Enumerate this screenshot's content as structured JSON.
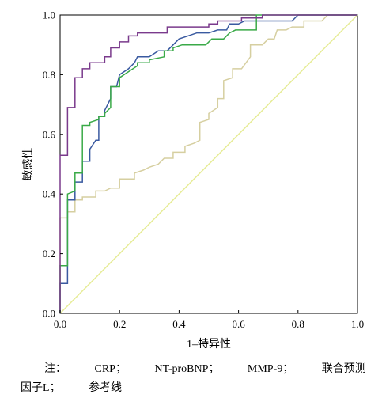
{
  "chart_data": {
    "type": "line",
    "xlabel": "1–特异性",
    "ylabel": "敏感性",
    "xlim": [
      0,
      1
    ],
    "ylim": [
      0,
      1
    ],
    "xticks": [
      "0.0",
      "0.2",
      "0.4",
      "0.6",
      "0.8",
      "1.0"
    ],
    "yticks": [
      "0.0",
      "0.2",
      "0.4",
      "0.6",
      "0.8",
      "1.0"
    ],
    "grid": false,
    "legend_position": "bottom",
    "note_prefix": "注：",
    "legend_end": "因子L；",
    "series": [
      {
        "name": "CRP；",
        "color": "#3a5aa0",
        "points": [
          [
            0,
            0
          ],
          [
            0,
            0.1
          ],
          [
            0.025,
            0.1
          ],
          [
            0.025,
            0.38
          ],
          [
            0.05,
            0.38
          ],
          [
            0.05,
            0.44
          ],
          [
            0.075,
            0.44
          ],
          [
            0.075,
            0.51
          ],
          [
            0.1,
            0.51
          ],
          [
            0.1,
            0.55
          ],
          [
            0.12,
            0.58
          ],
          [
            0.13,
            0.58
          ],
          [
            0.13,
            0.66
          ],
          [
            0.15,
            0.66
          ],
          [
            0.15,
            0.68
          ],
          [
            0.17,
            0.72
          ],
          [
            0.17,
            0.76
          ],
          [
            0.19,
            0.76
          ],
          [
            0.2,
            0.8
          ],
          [
            0.23,
            0.82
          ],
          [
            0.25,
            0.84
          ],
          [
            0.26,
            0.86
          ],
          [
            0.3,
            0.86
          ],
          [
            0.33,
            0.88
          ],
          [
            0.36,
            0.88
          ],
          [
            0.38,
            0.9
          ],
          [
            0.4,
            0.92
          ],
          [
            0.43,
            0.93
          ],
          [
            0.46,
            0.94
          ],
          [
            0.5,
            0.94
          ],
          [
            0.53,
            0.95
          ],
          [
            0.56,
            0.95
          ],
          [
            0.57,
            0.97
          ],
          [
            0.6,
            0.97
          ],
          [
            0.62,
            0.98
          ],
          [
            0.68,
            0.98
          ],
          [
            0.78,
            0.98
          ],
          [
            0.8,
            1.0
          ],
          [
            1.0,
            1.0
          ]
        ]
      },
      {
        "name": "NT-proBNP；",
        "color": "#3aaa48",
        "points": [
          [
            0,
            0
          ],
          [
            0,
            0.16
          ],
          [
            0.025,
            0.16
          ],
          [
            0.025,
            0.4
          ],
          [
            0.05,
            0.41
          ],
          [
            0.05,
            0.47
          ],
          [
            0.075,
            0.47
          ],
          [
            0.075,
            0.63
          ],
          [
            0.1,
            0.63
          ],
          [
            0.1,
            0.64
          ],
          [
            0.13,
            0.65
          ],
          [
            0.13,
            0.66
          ],
          [
            0.15,
            0.66
          ],
          [
            0.15,
            0.67
          ],
          [
            0.17,
            0.69
          ],
          [
            0.17,
            0.76
          ],
          [
            0.2,
            0.76
          ],
          [
            0.2,
            0.79
          ],
          [
            0.23,
            0.81
          ],
          [
            0.26,
            0.83
          ],
          [
            0.26,
            0.84
          ],
          [
            0.3,
            0.84
          ],
          [
            0.3,
            0.85
          ],
          [
            0.35,
            0.86
          ],
          [
            0.35,
            0.88
          ],
          [
            0.38,
            0.88
          ],
          [
            0.38,
            0.89
          ],
          [
            0.41,
            0.9
          ],
          [
            0.49,
            0.9
          ],
          [
            0.51,
            0.92
          ],
          [
            0.55,
            0.92
          ],
          [
            0.57,
            0.94
          ],
          [
            0.59,
            0.95
          ],
          [
            0.66,
            0.95
          ],
          [
            0.66,
            1.0
          ],
          [
            1.0,
            1.0
          ]
        ]
      },
      {
        "name": "MMP-9；",
        "color": "#d6cfa0",
        "points": [
          [
            0,
            0
          ],
          [
            0,
            0.32
          ],
          [
            0.025,
            0.32
          ],
          [
            0.025,
            0.34
          ],
          [
            0.05,
            0.34
          ],
          [
            0.05,
            0.38
          ],
          [
            0.075,
            0.38
          ],
          [
            0.075,
            0.39
          ],
          [
            0.12,
            0.39
          ],
          [
            0.12,
            0.41
          ],
          [
            0.15,
            0.41
          ],
          [
            0.17,
            0.42
          ],
          [
            0.2,
            0.42
          ],
          [
            0.2,
            0.45
          ],
          [
            0.25,
            0.45
          ],
          [
            0.25,
            0.47
          ],
          [
            0.28,
            0.48
          ],
          [
            0.3,
            0.49
          ],
          [
            0.33,
            0.5
          ],
          [
            0.35,
            0.52
          ],
          [
            0.38,
            0.52
          ],
          [
            0.38,
            0.54
          ],
          [
            0.42,
            0.54
          ],
          [
            0.42,
            0.56
          ],
          [
            0.45,
            0.57
          ],
          [
            0.47,
            0.58
          ],
          [
            0.47,
            0.64
          ],
          [
            0.5,
            0.65
          ],
          [
            0.5,
            0.67
          ],
          [
            0.53,
            0.69
          ],
          [
            0.53,
            0.72
          ],
          [
            0.55,
            0.72
          ],
          [
            0.55,
            0.78
          ],
          [
            0.58,
            0.79
          ],
          [
            0.58,
            0.82
          ],
          [
            0.61,
            0.82
          ],
          [
            0.64,
            0.86
          ],
          [
            0.64,
            0.9
          ],
          [
            0.68,
            0.9
          ],
          [
            0.7,
            0.92
          ],
          [
            0.72,
            0.92
          ],
          [
            0.73,
            0.95
          ],
          [
            0.76,
            0.95
          ],
          [
            0.78,
            0.96
          ],
          [
            0.82,
            0.96
          ],
          [
            0.82,
            0.98
          ],
          [
            0.88,
            0.98
          ],
          [
            0.9,
            1.0
          ],
          [
            1.0,
            1.0
          ]
        ]
      },
      {
        "name": "联合预测",
        "color": "#7a3a8c",
        "points": [
          [
            0,
            0
          ],
          [
            0,
            0.53
          ],
          [
            0.025,
            0.53
          ],
          [
            0.025,
            0.69
          ],
          [
            0.05,
            0.69
          ],
          [
            0.05,
            0.79
          ],
          [
            0.075,
            0.79
          ],
          [
            0.075,
            0.82
          ],
          [
            0.1,
            0.82
          ],
          [
            0.1,
            0.84
          ],
          [
            0.15,
            0.84
          ],
          [
            0.15,
            0.86
          ],
          [
            0.17,
            0.86
          ],
          [
            0.17,
            0.89
          ],
          [
            0.2,
            0.89
          ],
          [
            0.2,
            0.91
          ],
          [
            0.23,
            0.91
          ],
          [
            0.23,
            0.93
          ],
          [
            0.26,
            0.93
          ],
          [
            0.26,
            0.94
          ],
          [
            0.36,
            0.94
          ],
          [
            0.36,
            0.96
          ],
          [
            0.5,
            0.96
          ],
          [
            0.5,
            0.97
          ],
          [
            0.53,
            0.97
          ],
          [
            0.53,
            0.98
          ],
          [
            0.61,
            0.98
          ],
          [
            0.61,
            0.99
          ],
          [
            0.68,
            0.99
          ],
          [
            0.68,
            1.0
          ],
          [
            1.0,
            1.0
          ]
        ]
      },
      {
        "name": "参考线",
        "color": "#e6ec96",
        "points": [
          [
            0,
            0
          ],
          [
            1,
            1
          ]
        ]
      }
    ]
  }
}
